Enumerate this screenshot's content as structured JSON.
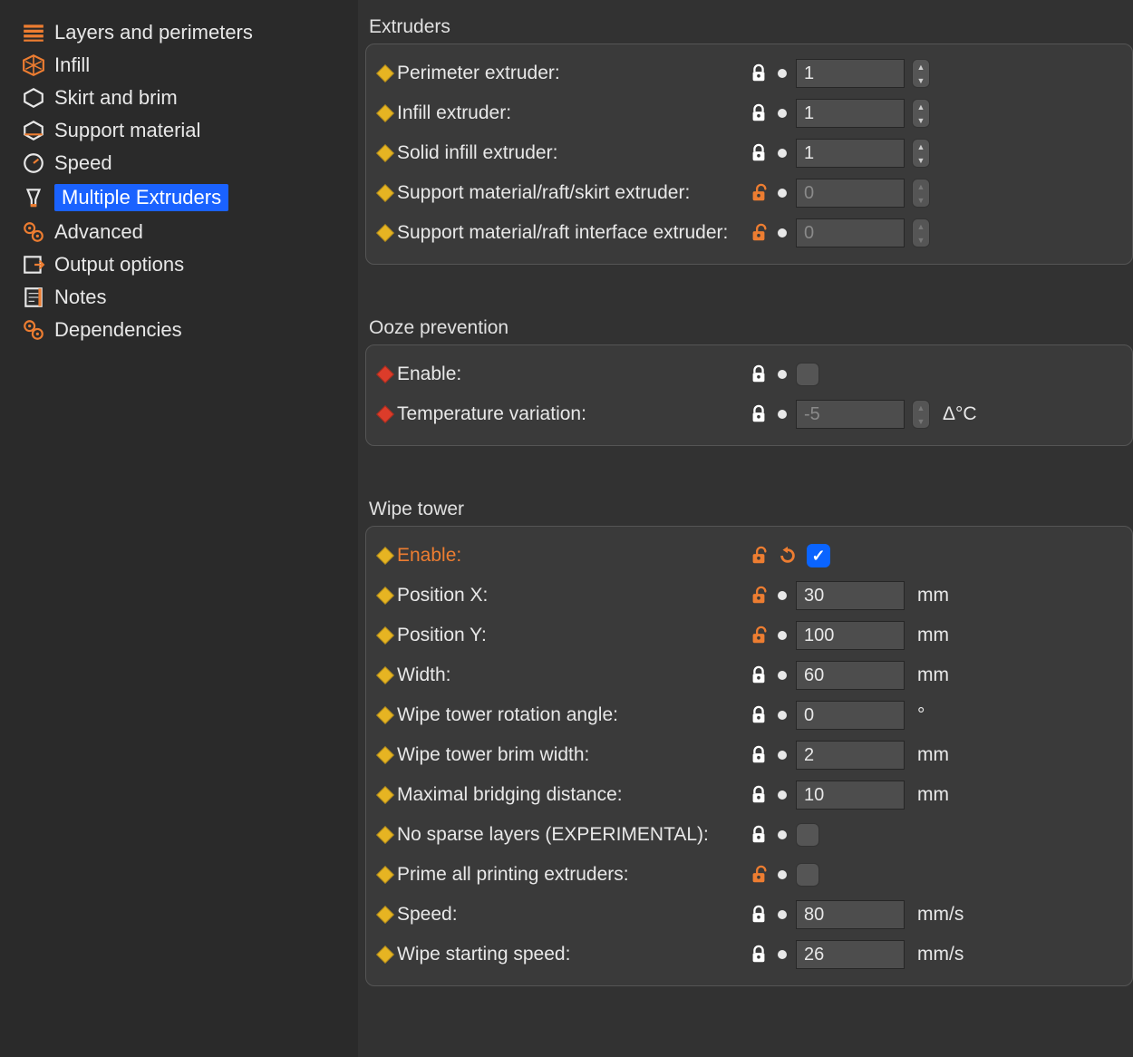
{
  "colors": {
    "bg": "#323232",
    "sidebar_bg": "#2a2a2a",
    "panel_bg": "#3a3a3a",
    "panel_border": "#555555",
    "text": "#e8e8e8",
    "highlight_bg": "#1a62ff",
    "orange": "#ed7d31",
    "bullet_yellow": "#e6b422",
    "bullet_red": "#dc3c2a",
    "input_bg": "#4d4d4d",
    "arrow": "#edb936"
  },
  "sidebar": {
    "items": [
      {
        "icon": "layers",
        "label": "Layers and perimeters",
        "active": false
      },
      {
        "icon": "infill",
        "label": "Infill",
        "active": false
      },
      {
        "icon": "skirt",
        "label": "Skirt and brim",
        "active": false
      },
      {
        "icon": "support",
        "label": "Support material",
        "active": false
      },
      {
        "icon": "speed",
        "label": "Speed",
        "active": false
      },
      {
        "icon": "multi",
        "label": "Multiple Extruders",
        "active": true
      },
      {
        "icon": "advanced",
        "label": "Advanced",
        "active": false
      },
      {
        "icon": "output",
        "label": "Output options",
        "active": false
      },
      {
        "icon": "notes",
        "label": "Notes",
        "active": false
      },
      {
        "icon": "deps",
        "label": "Dependencies",
        "active": false
      }
    ]
  },
  "sections": [
    {
      "title": "Extruders",
      "rows": [
        {
          "bullet": "yellow",
          "label": "Perimeter extruder:",
          "lock": "white-closed",
          "dot": true,
          "input": {
            "value": "1",
            "disabled": false,
            "stepper": true
          }
        },
        {
          "bullet": "yellow",
          "label": "Infill extruder:",
          "lock": "white-closed",
          "dot": true,
          "input": {
            "value": "1",
            "disabled": false,
            "stepper": true
          }
        },
        {
          "bullet": "yellow",
          "label": "Solid infill extruder:",
          "lock": "white-closed",
          "dot": true,
          "input": {
            "value": "1",
            "disabled": false,
            "stepper": true
          }
        },
        {
          "bullet": "yellow",
          "label": "Support material/raft/skirt extruder:",
          "lock": "orange-open",
          "dot": true,
          "input": {
            "value": "0",
            "disabled": true,
            "stepper": true,
            "stepper_disabled": true
          }
        },
        {
          "bullet": "yellow",
          "label": "Support material/raft interface extruder:",
          "lock": "orange-open",
          "dot": true,
          "input": {
            "value": "0",
            "disabled": true,
            "stepper": true,
            "stepper_disabled": true
          }
        }
      ]
    },
    {
      "title": "Ooze prevention",
      "rows": [
        {
          "bullet": "red",
          "label": "Enable:",
          "lock": "white-closed",
          "dot": true,
          "checkbox": {
            "on": false
          }
        },
        {
          "bullet": "red",
          "label": "Temperature variation:",
          "lock": "white-closed",
          "dot": true,
          "input": {
            "value": "-5",
            "disabled": true,
            "stepper": true,
            "stepper_disabled": true
          },
          "unit": "Δ°C"
        }
      ]
    },
    {
      "title": "Wipe tower",
      "rows": [
        {
          "bullet": "yellow",
          "label": "Enable:",
          "label_orange": true,
          "lock": "orange-open",
          "undo": true,
          "checkbox": {
            "on": true
          }
        },
        {
          "bullet": "yellow",
          "label": "Position X:",
          "lock": "orange-open",
          "dot": true,
          "input": {
            "value": "30"
          },
          "unit": "mm"
        },
        {
          "bullet": "yellow",
          "label": "Position Y:",
          "lock": "orange-open",
          "dot": true,
          "input": {
            "value": "100"
          },
          "unit": "mm"
        },
        {
          "bullet": "yellow",
          "label": "Width:",
          "lock": "white-closed",
          "dot": true,
          "input": {
            "value": "60"
          },
          "unit": "mm"
        },
        {
          "bullet": "yellow",
          "label": "Wipe tower rotation angle:",
          "lock": "white-closed",
          "dot": true,
          "input": {
            "value": "0"
          },
          "unit": "°"
        },
        {
          "bullet": "yellow",
          "label": "Wipe tower brim width:",
          "lock": "white-closed",
          "dot": true,
          "input": {
            "value": "2"
          },
          "unit": "mm"
        },
        {
          "bullet": "yellow",
          "label": "Maximal bridging distance:",
          "lock": "white-closed",
          "dot": true,
          "input": {
            "value": "10"
          },
          "unit": "mm"
        },
        {
          "bullet": "yellow",
          "label": "No sparse layers (EXPERIMENTAL):",
          "lock": "white-closed",
          "dot": true,
          "checkbox": {
            "on": false
          }
        },
        {
          "bullet": "yellow",
          "label": "Prime all printing extruders:",
          "lock": "orange-open",
          "dot": true,
          "checkbox": {
            "on": false
          }
        },
        {
          "bullet": "yellow",
          "label": "Speed:",
          "lock": "white-closed",
          "dot": true,
          "input": {
            "value": "80"
          },
          "unit": "mm/s"
        },
        {
          "bullet": "yellow",
          "label": "Wipe starting speed:",
          "lock": "white-closed",
          "dot": true,
          "input": {
            "value": "26"
          },
          "unit": "mm/s"
        }
      ]
    }
  ]
}
